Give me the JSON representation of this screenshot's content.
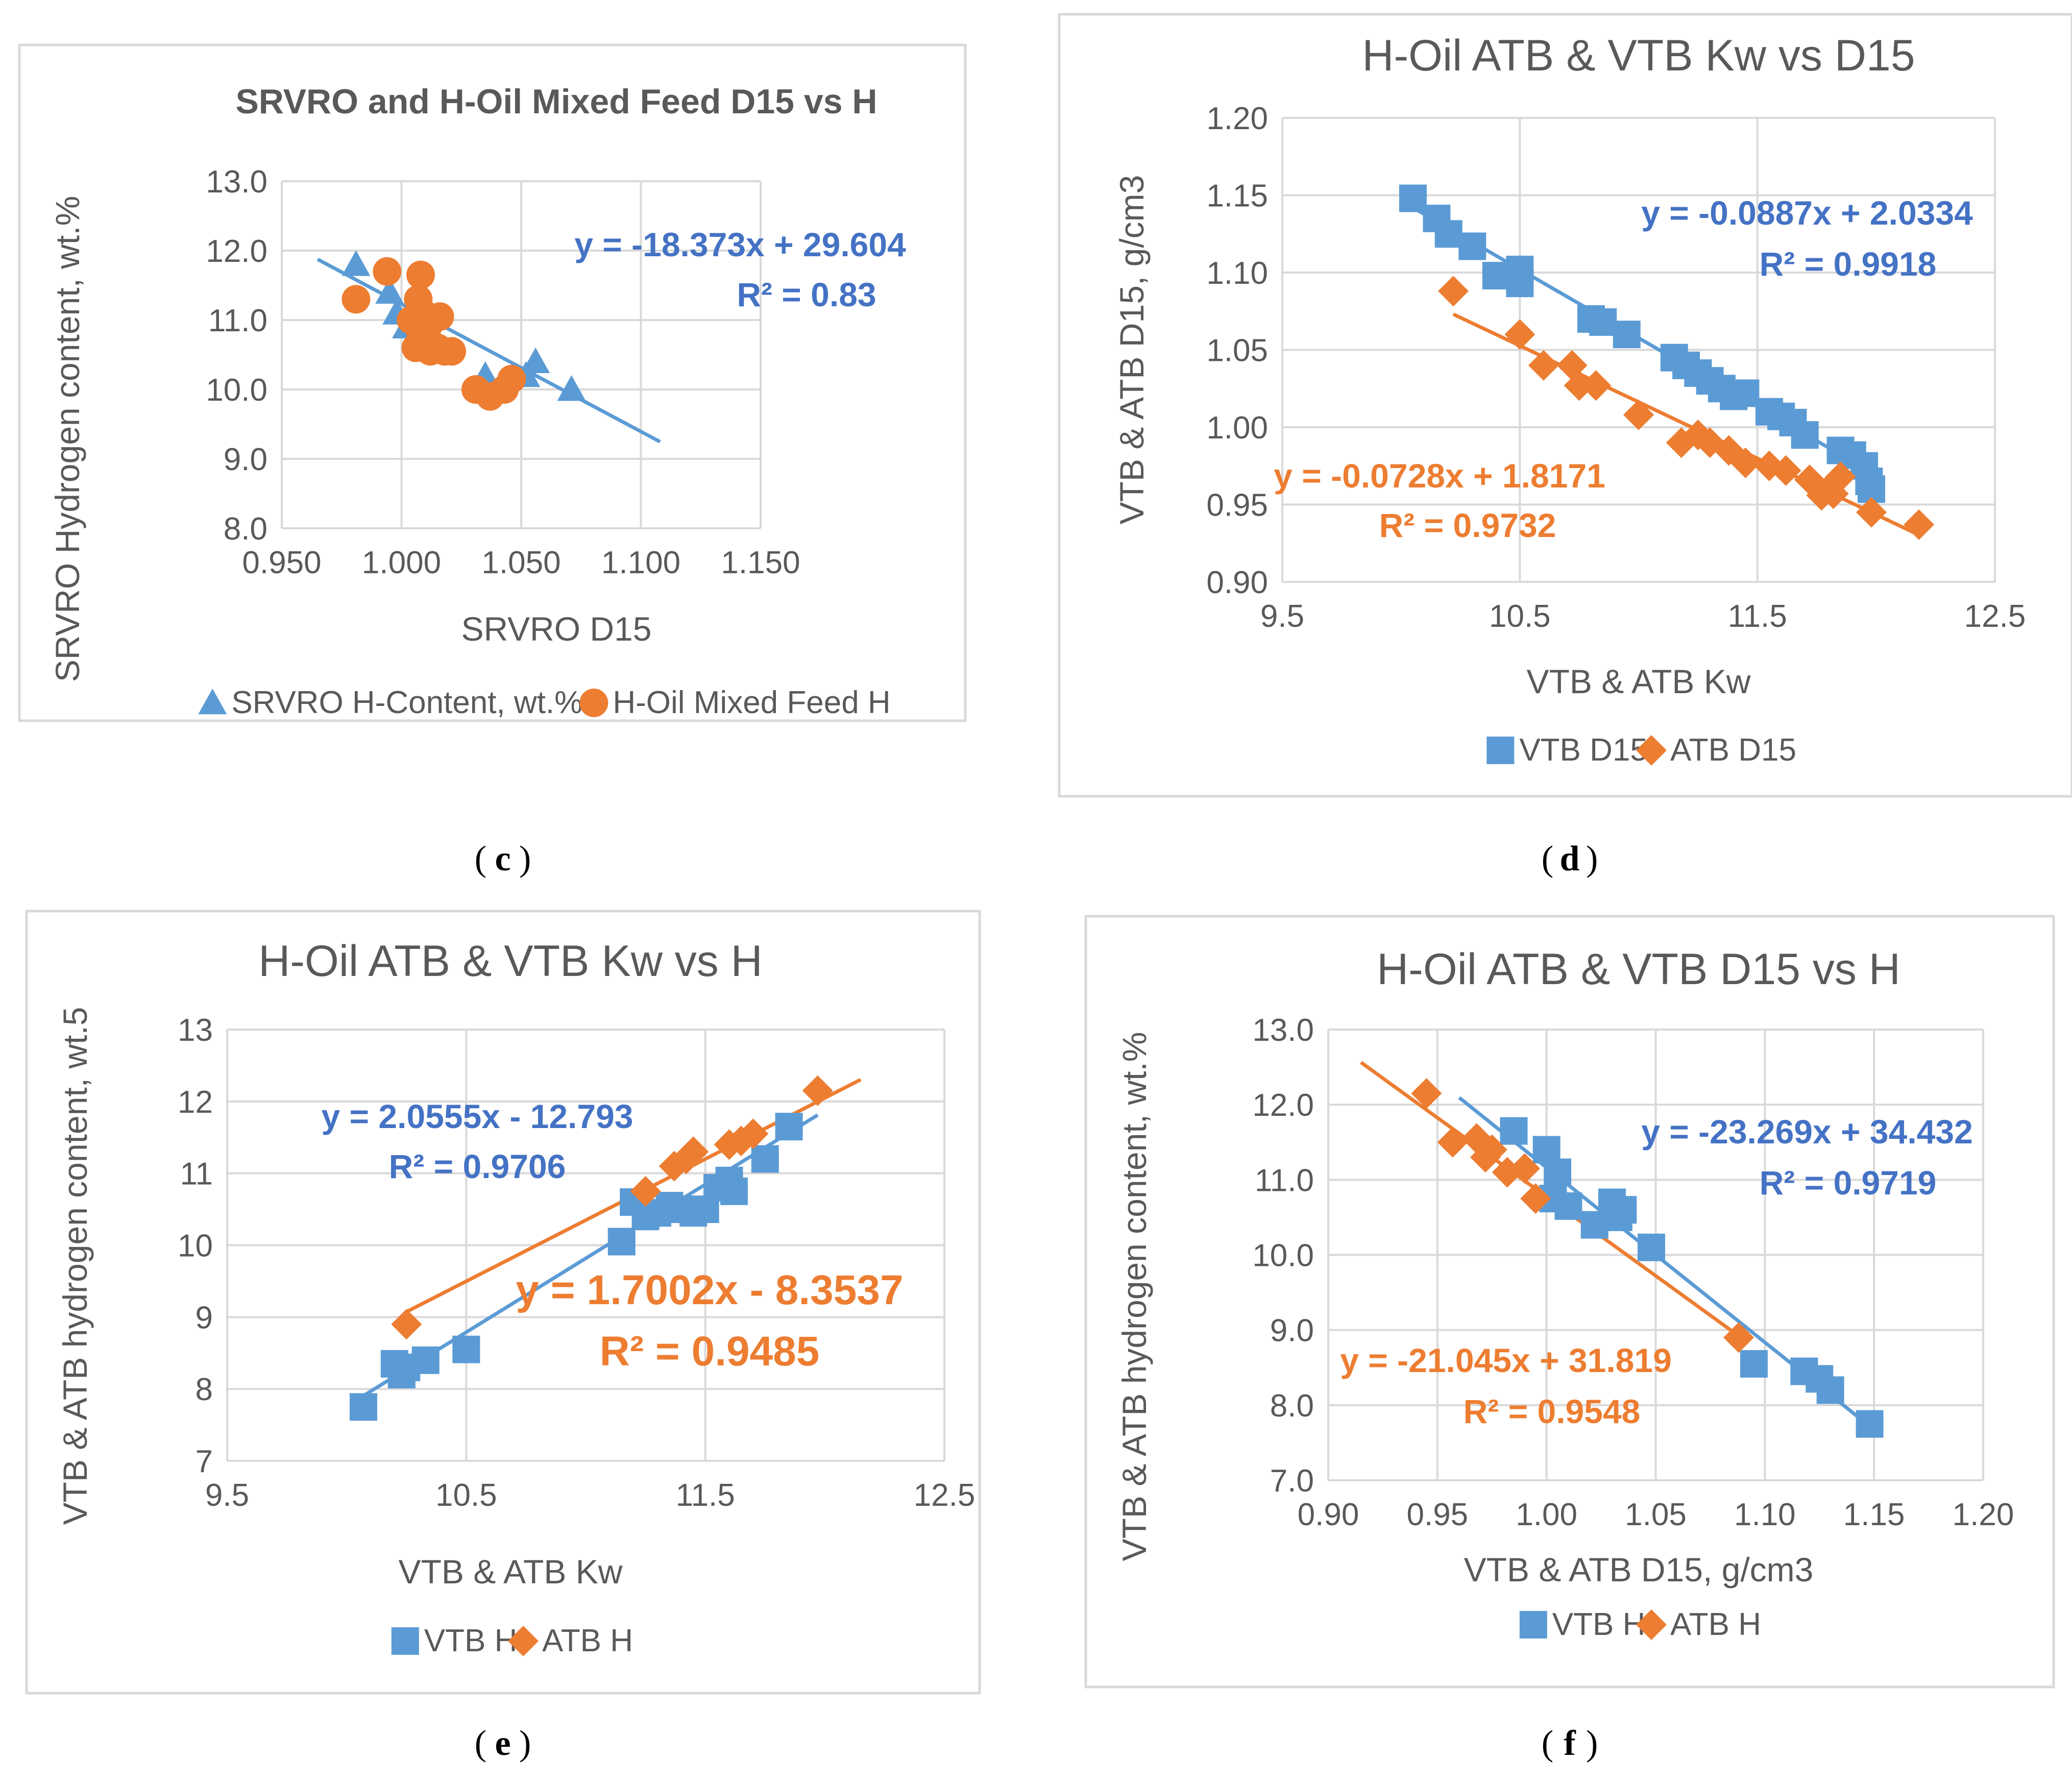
{
  "figure": {
    "caption_format": "(label)"
  },
  "chart_data": [
    {
      "id": "c",
      "type": "scatter",
      "panel_label": "c",
      "title": "SRVRO and H-Oil Mixed Feed D15 vs H",
      "xlabel": "SRVRO D15",
      "ylabel": "SRVRO Hydrogen content, wt.%",
      "xlim": [
        0.95,
        1.15
      ],
      "ylim": [
        8.0,
        13.0
      ],
      "xticks": [
        "0.950",
        "1.000",
        "1.050",
        "1.100",
        "1.150"
      ],
      "yticks": [
        "8.0",
        "9.0",
        "10.0",
        "11.0",
        "12.0",
        "13.0"
      ],
      "series": [
        {
          "name": "SRVRO H-Content, wt.%",
          "color": "#5B9BD5",
          "marker": "triangle",
          "x": [
            0.981,
            0.995,
            0.998,
            1.002,
            1.035,
            1.052,
            1.056,
            1.071
          ],
          "y": [
            11.8,
            11.4,
            11.1,
            10.9,
            10.2,
            10.2,
            10.4,
            10.0
          ]
        },
        {
          "name": "H-Oil Mixed Feed H",
          "color": "#ED7D31",
          "marker": "circle",
          "x": [
            0.981,
            0.994,
            1.004,
            1.006,
            1.007,
            1.008,
            1.008,
            1.009,
            1.01,
            1.011,
            1.012,
            1.013,
            1.015,
            1.016,
            1.018,
            1.021,
            1.031,
            1.037,
            1.043,
            1.046
          ],
          "y": [
            11.3,
            11.7,
            11.0,
            10.6,
            11.3,
            11.65,
            10.8,
            11.1,
            10.7,
            10.9,
            10.55,
            11.0,
            10.6,
            11.05,
            10.55,
            10.55,
            10.0,
            9.9,
            10.0,
            10.15
          ]
        }
      ],
      "trendlines": [
        {
          "series": "SRVRO H-Content, wt.%",
          "color": "#5B9BD5",
          "x": [
            0.965,
            1.108
          ],
          "slope": -18.373,
          "intercept": 29.604,
          "equation": "y = -18.373x + 29.604",
          "r2": "R² = 0.83",
          "label_color": "#4472C4"
        }
      ],
      "legend": "bottom"
    },
    {
      "id": "d",
      "type": "scatter",
      "panel_label": "d",
      "title": "H-Oil ATB & VTB Kw vs D15",
      "xlabel": "VTB & ATB Kw",
      "ylabel": "VTB & ATB D15, g/cm3",
      "xlim": [
        9.5,
        12.5
      ],
      "ylim": [
        0.9,
        1.2
      ],
      "xticks": [
        "9.5",
        "10.5",
        "11.5",
        "12.5"
      ],
      "yticks": [
        "0.90",
        "0.95",
        "1.00",
        "1.05",
        "1.10",
        "1.15",
        "1.20"
      ],
      "series": [
        {
          "name": "VTB D15",
          "color": "#5B9BD5",
          "marker": "square",
          "x": [
            10.05,
            10.15,
            10.2,
            10.3,
            10.4,
            10.5,
            10.5,
            10.8,
            10.85,
            10.95,
            11.15,
            11.2,
            11.25,
            11.3,
            11.35,
            11.4,
            11.45,
            11.55,
            11.6,
            11.65,
            11.7,
            11.85,
            11.9,
            11.95,
            11.97,
            11.98
          ],
          "y": [
            1.148,
            1.135,
            1.125,
            1.117,
            1.098,
            1.102,
            1.093,
            1.07,
            1.068,
            1.06,
            1.045,
            1.04,
            1.035,
            1.03,
            1.025,
            1.02,
            1.022,
            1.01,
            1.007,
            1.003,
            0.995,
            0.985,
            0.982,
            0.975,
            0.965,
            0.96
          ]
        },
        {
          "name": "ATB D15",
          "color": "#ED7D31",
          "marker": "diamond",
          "x": [
            10.22,
            10.5,
            10.6,
            10.72,
            10.75,
            10.82,
            11.0,
            11.18,
            11.25,
            11.3,
            11.38,
            11.45,
            11.55,
            11.62,
            11.72,
            11.77,
            11.8,
            11.82,
            11.85,
            11.98,
            12.18
          ],
          "y": [
            1.088,
            1.06,
            1.04,
            1.04,
            1.027,
            1.027,
            1.008,
            0.99,
            0.995,
            0.99,
            0.985,
            0.977,
            0.975,
            0.972,
            0.966,
            0.956,
            0.96,
            0.957,
            0.968,
            0.945,
            0.937
          ]
        }
      ],
      "trendlines": [
        {
          "series": "VTB D15",
          "color": "#5B9BD5",
          "x": [
            10.05,
            11.97
          ],
          "slope": -0.0887,
          "intercept": 2.0334,
          "equation": "y = -0.0887x + 2.0334",
          "r2": "R² = 0.9918",
          "label_color": "#4472C4"
        },
        {
          "series": "ATB D15",
          "color": "#ED7D31",
          "x": [
            10.22,
            12.18
          ],
          "slope": -0.0728,
          "intercept": 1.8171,
          "equation": "y = -0.0728x + 1.8171",
          "r2": "R² = 0.9732",
          "label_color": "#ED7D31"
        }
      ],
      "legend": "bottom"
    },
    {
      "id": "e",
      "type": "scatter",
      "panel_label": "e",
      "title": "H-Oil ATB & VTB Kw vs H",
      "xlabel": "VTB & ATB Kw",
      "ylabel": "VTB & ATB hydrogen content, wt.5",
      "xlim": [
        9.5,
        12.5
      ],
      "ylim": [
        7,
        13
      ],
      "xticks": [
        "9.5",
        "10.5",
        "11.5",
        "12.5"
      ],
      "yticks": [
        "7",
        "8",
        "9",
        "10",
        "11",
        "12",
        "13"
      ],
      "series": [
        {
          "name": "VTB H",
          "color": "#5B9BD5",
          "marker": "square",
          "x": [
            10.07,
            10.2,
            10.23,
            10.25,
            10.33,
            10.5,
            11.15,
            11.2,
            11.25,
            11.3,
            11.35,
            11.4,
            11.45,
            11.5,
            11.55,
            11.6,
            11.62,
            11.75,
            11.85
          ],
          "y": [
            7.75,
            8.35,
            8.2,
            8.3,
            8.4,
            8.55,
            10.05,
            10.6,
            10.4,
            10.45,
            10.55,
            10.5,
            10.45,
            10.5,
            10.8,
            10.9,
            10.75,
            11.2,
            11.65
          ]
        },
        {
          "name": "ATB H",
          "color": "#ED7D31",
          "marker": "diamond",
          "x": [
            10.25,
            11.25,
            11.37,
            11.42,
            11.45,
            11.6,
            11.65,
            11.7,
            11.97
          ],
          "y": [
            8.9,
            10.75,
            11.1,
            11.2,
            11.3,
            11.4,
            11.45,
            11.55,
            12.15
          ]
        }
      ],
      "trendlines": [
        {
          "series": "VTB H",
          "color": "#5B9BD5",
          "x": [
            10.07,
            11.97
          ],
          "slope": 2.0555,
          "intercept": -12.793,
          "equation": "y = 2.0555x - 12.793",
          "r2": "R² = 0.9706",
          "label_color": "#4472C4"
        },
        {
          "series": "ATB H",
          "color": "#ED7D31",
          "x": [
            10.25,
            12.15
          ],
          "slope": 1.7002,
          "intercept": -8.3537,
          "equation": "y = 1.7002x - 8.3537",
          "r2": "R² = 0.9485",
          "label_color": "#ED7D31"
        }
      ],
      "legend": "bottom"
    },
    {
      "id": "f",
      "type": "scatter",
      "panel_label": "f",
      "title": "H-Oil ATB & VTB D15 vs H",
      "xlabel": "VTB & ATB D15, g/cm3",
      "ylabel": "VTB & ATB hydrogen content, wt.%",
      "xlim": [
        0.9,
        1.2
      ],
      "ylim": [
        7.0,
        13.0
      ],
      "xticks": [
        "0.90",
        "0.95",
        "1.00",
        "1.05",
        "1.10",
        "1.15",
        "1.20"
      ],
      "yticks": [
        "7.0",
        "8.0",
        "9.0",
        "10.0",
        "11.0",
        "12.0",
        "13.0"
      ],
      "series": [
        {
          "name": "VTB H",
          "color": "#5B9BD5",
          "marker": "square",
          "x": [
            0.985,
            1.0,
            1.003,
            1.005,
            1.01,
            1.022,
            1.03,
            1.033,
            1.035,
            1.048,
            1.095,
            1.118,
            1.125,
            1.13,
            1.148
          ],
          "y": [
            11.65,
            11.4,
            10.75,
            11.1,
            10.65,
            10.4,
            10.7,
            10.5,
            10.6,
            10.1,
            8.55,
            8.45,
            8.35,
            8.2,
            7.75
          ]
        },
        {
          "name": "ATB H",
          "color": "#ED7D31",
          "marker": "diamond",
          "x": [
            0.945,
            0.957,
            0.968,
            0.972,
            0.975,
            0.982,
            0.99,
            0.995,
            1.088
          ],
          "y": [
            12.15,
            11.5,
            11.55,
            11.3,
            11.4,
            11.1,
            11.15,
            10.75,
            8.9
          ]
        }
      ],
      "trendlines": [
        {
          "series": "VTB H",
          "color": "#5B9BD5",
          "x": [
            0.96,
            1.148
          ],
          "slope": -23.269,
          "intercept": 34.432,
          "equation": "y = -23.269x + 34.432",
          "r2": "R² = 0.9719",
          "label_color": "#4472C4"
        },
        {
          "series": "ATB H",
          "color": "#ED7D31",
          "x": [
            0.915,
            1.09
          ],
          "slope": -21.045,
          "intercept": 31.819,
          "equation": "y = -21.045x + 31.819",
          "r2": "R² = 0.9548",
          "label_color": "#ED7D31"
        }
      ],
      "legend": "bottom"
    }
  ]
}
